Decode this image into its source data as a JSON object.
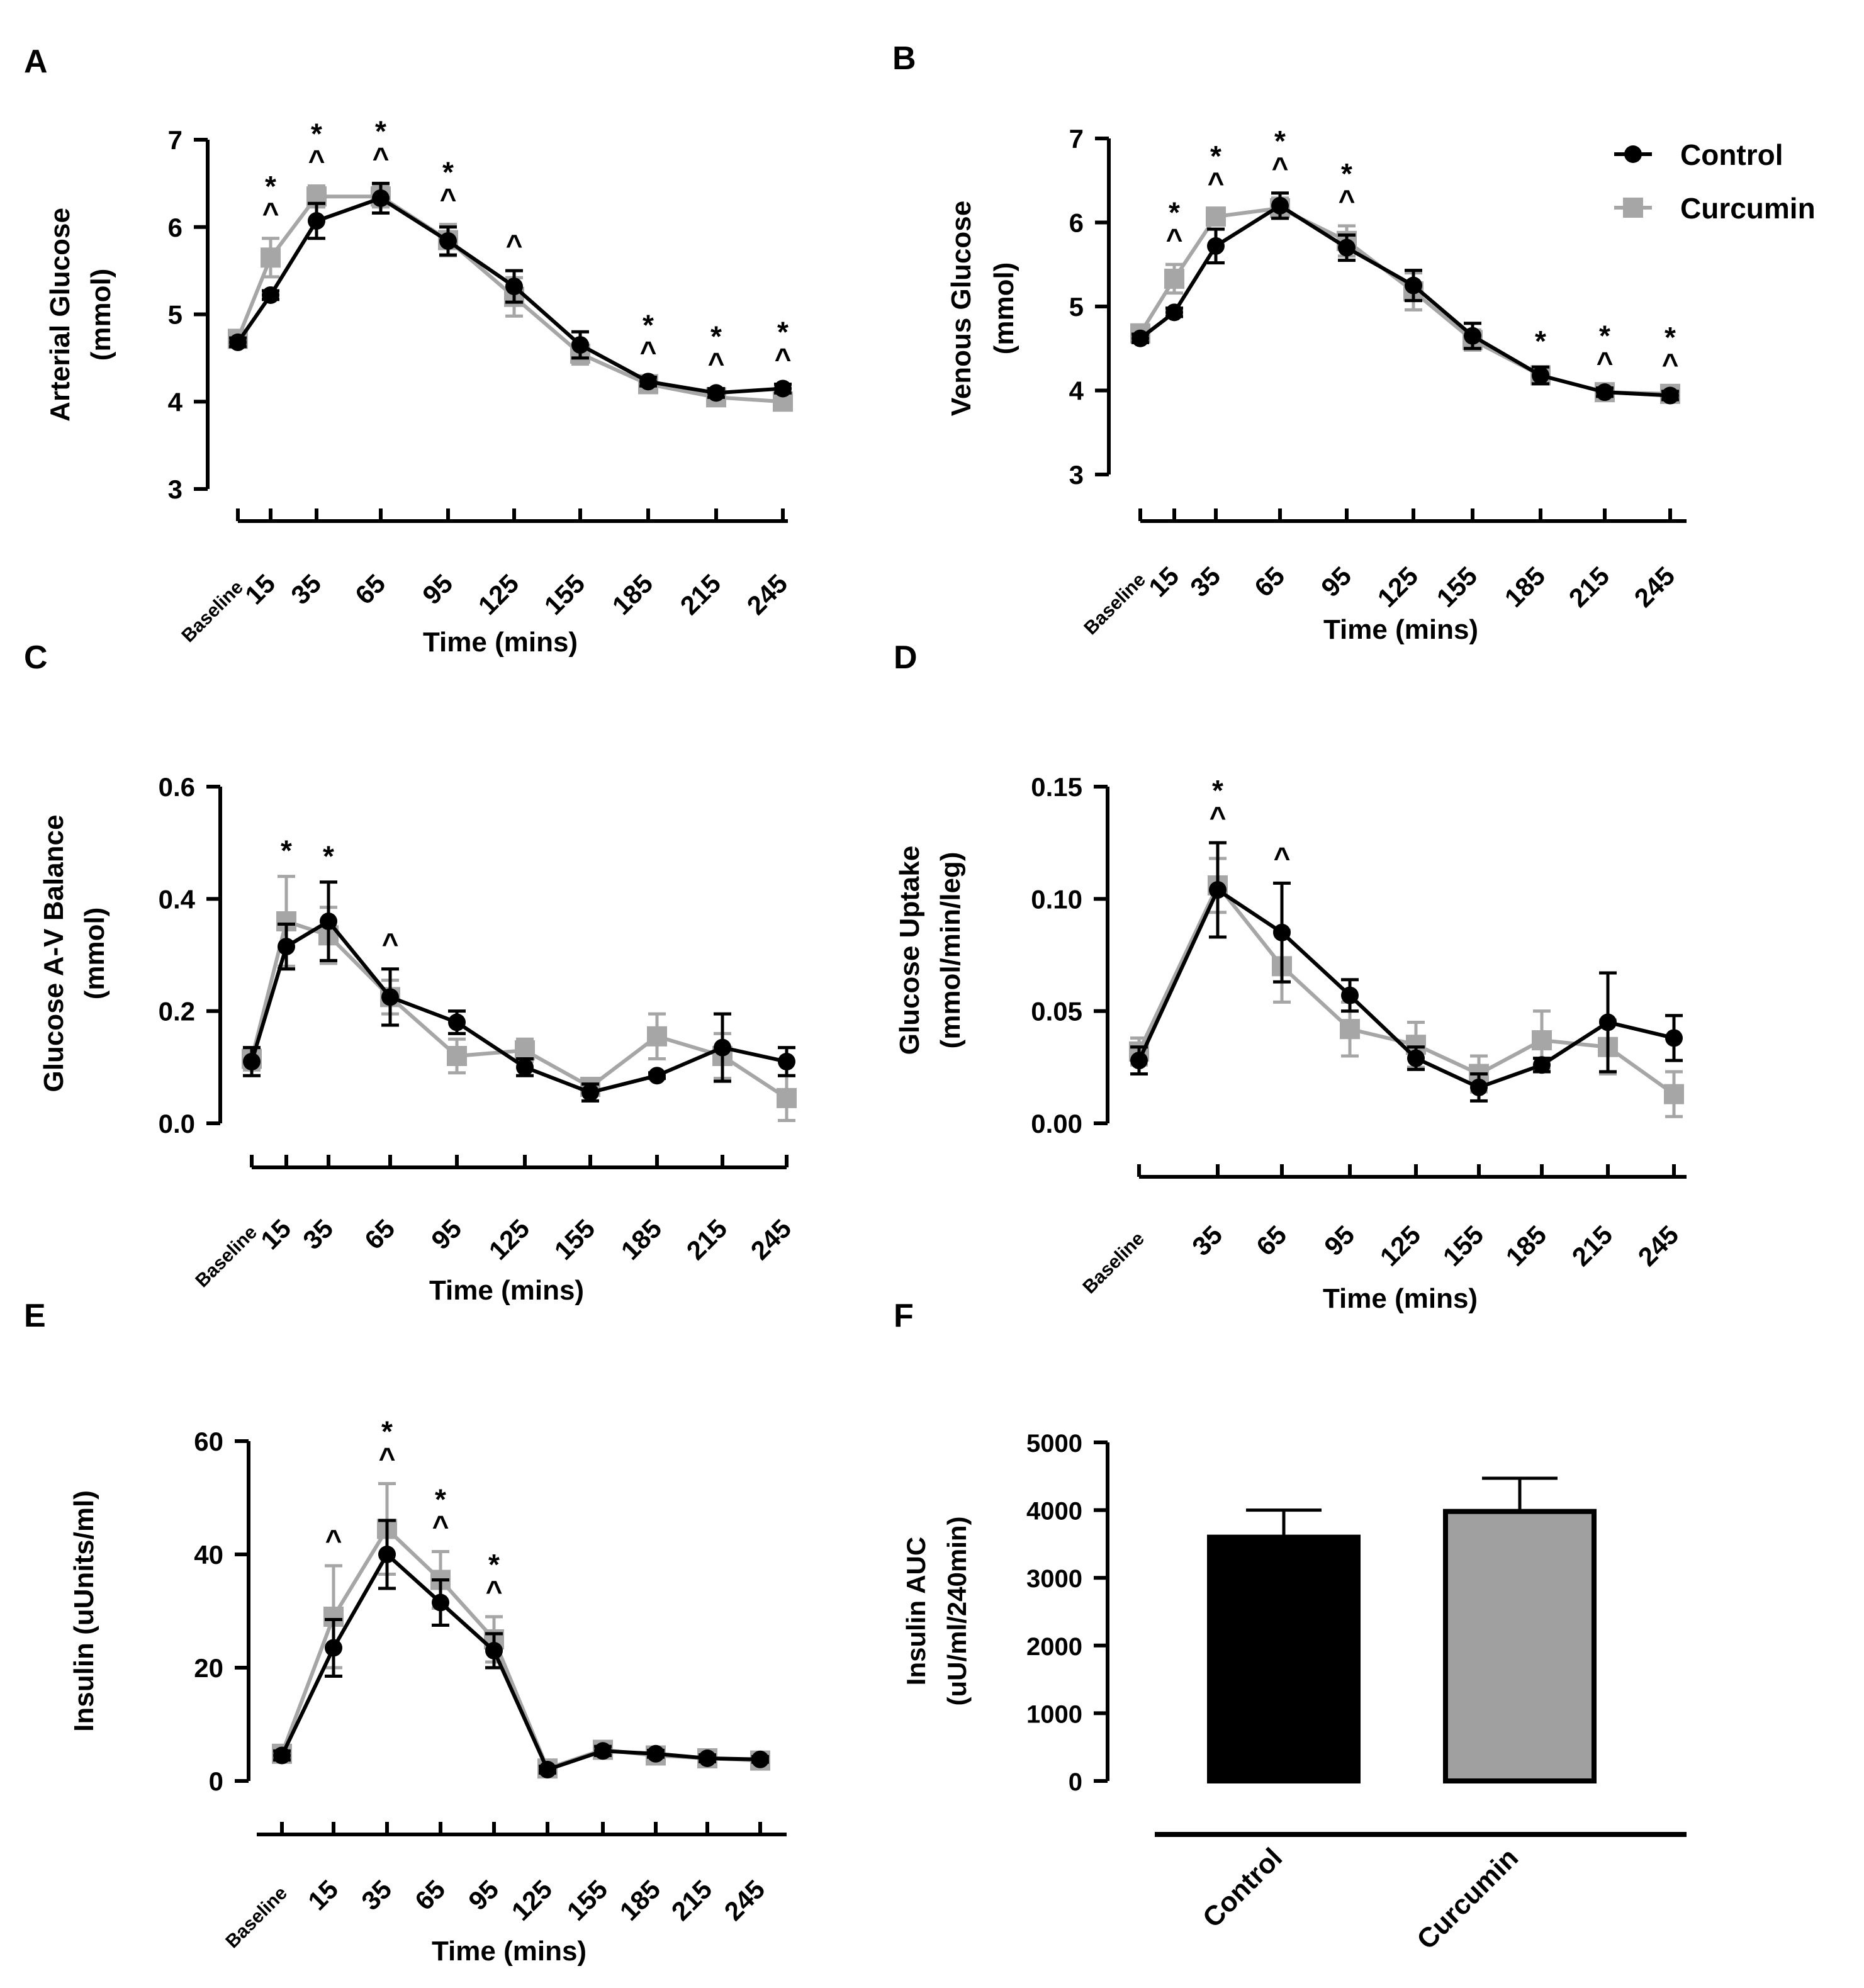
{
  "colors": {
    "control": "#000000",
    "curcumin": "#a6a6a6",
    "curcumin_bar": "#a0a0a0"
  },
  "legend": {
    "control_label": "Control",
    "curcumin_label": "Curcumin"
  },
  "chart_data": [
    {
      "panel": "A",
      "type": "line",
      "xlabel": "Time (mins)",
      "ylabel_lines": [
        "Arterial Glucose",
        "(mmol)"
      ],
      "categories": [
        "Baseline",
        "15",
        "35",
        "65",
        "95",
        "125",
        "155",
        "185",
        "215",
        "245"
      ],
      "x_minutes": [
        0,
        15,
        35,
        65,
        95,
        125,
        155,
        185,
        215,
        245
      ],
      "ylim": [
        3,
        7
      ],
      "yticks": [
        "3",
        "4",
        "5",
        "6",
        "7"
      ],
      "ytick_values": [
        3,
        4,
        5,
        6,
        7
      ],
      "series": [
        {
          "name": "Control",
          "values": [
            4.68,
            5.22,
            6.07,
            6.33,
            5.84,
            5.32,
            4.65,
            4.23,
            4.1,
            4.15
          ],
          "errors": [
            0.05,
            0.05,
            0.2,
            0.17,
            0.16,
            0.18,
            0.15,
            0.05,
            0.05,
            0.05
          ]
        },
        {
          "name": "Curcumin",
          "values": [
            4.72,
            5.65,
            6.35,
            6.35,
            5.85,
            5.2,
            4.55,
            4.2,
            4.05,
            4.0
          ],
          "errors": [
            0.06,
            0.22,
            0.12,
            0.12,
            0.18,
            0.22,
            0.12,
            0.05,
            0.05,
            0.05
          ]
        }
      ],
      "annotations": [
        {
          "x": 15,
          "marks": [
            "*",
            "^"
          ]
        },
        {
          "x": 35,
          "marks": [
            "*",
            "^"
          ]
        },
        {
          "x": 65,
          "marks": [
            "*",
            "^"
          ]
        },
        {
          "x": 95,
          "marks": [
            "*",
            "^"
          ]
        },
        {
          "x": 125,
          "marks": [
            "^"
          ]
        },
        {
          "x": 185,
          "marks": [
            "*",
            "^"
          ]
        },
        {
          "x": 215,
          "marks": [
            "*",
            "^"
          ]
        },
        {
          "x": 245,
          "marks": [
            "*",
            "^"
          ]
        }
      ]
    },
    {
      "panel": "B",
      "type": "line",
      "xlabel": "Time (mins)",
      "ylabel_lines": [
        "Venous Glucose",
        "(mmol)"
      ],
      "categories": [
        "Baseline",
        "15",
        "35",
        "65",
        "95",
        "125",
        "155",
        "185",
        "215",
        "245"
      ],
      "x_minutes": [
        0,
        15,
        35,
        65,
        95,
        125,
        155,
        185,
        215,
        245
      ],
      "ylim": [
        3,
        7
      ],
      "yticks": [
        "3",
        "4",
        "5",
        "6",
        "7"
      ],
      "ytick_values": [
        3,
        4,
        5,
        6,
        7
      ],
      "legend_position": "top-right",
      "series": [
        {
          "name": "Control",
          "values": [
            4.62,
            4.93,
            5.72,
            6.2,
            5.7,
            5.25,
            4.65,
            4.18,
            3.98,
            3.94
          ],
          "errors": [
            0.05,
            0.05,
            0.2,
            0.15,
            0.15,
            0.18,
            0.15,
            0.1,
            0.05,
            0.05
          ]
        },
        {
          "name": "Curcumin",
          "values": [
            4.68,
            5.33,
            6.07,
            6.17,
            5.78,
            5.18,
            4.6,
            4.18,
            3.98,
            3.96
          ],
          "errors": [
            0.06,
            0.17,
            0.1,
            0.12,
            0.18,
            0.22,
            0.12,
            0.08,
            0.05,
            0.05
          ]
        }
      ],
      "annotations": [
        {
          "x": 15,
          "marks": [
            "*",
            "^"
          ]
        },
        {
          "x": 35,
          "marks": [
            "*",
            "^"
          ]
        },
        {
          "x": 65,
          "marks": [
            "*",
            "^"
          ]
        },
        {
          "x": 95,
          "marks": [
            "*",
            "^"
          ]
        },
        {
          "x": 185,
          "marks": [
            "*"
          ]
        },
        {
          "x": 215,
          "marks": [
            "*",
            "^"
          ]
        },
        {
          "x": 245,
          "marks": [
            "*",
            "^"
          ]
        }
      ]
    },
    {
      "panel": "C",
      "type": "line",
      "xlabel": "Time (mins)",
      "ylabel_lines": [
        "Glucose A-V Balance",
        "(mmol)"
      ],
      "categories": [
        "Baseline",
        "15",
        "35",
        "65",
        "95",
        "125",
        "155",
        "185",
        "215",
        "245"
      ],
      "x_minutes": [
        0,
        15,
        35,
        65,
        95,
        125,
        155,
        185,
        215,
        245
      ],
      "ylim": [
        0,
        0.6
      ],
      "yticks": [
        "0.0",
        "0.2",
        "0.4",
        "0.6"
      ],
      "ytick_values": [
        0,
        0.2,
        0.4,
        0.6
      ],
      "series": [
        {
          "name": "Control",
          "values": [
            0.11,
            0.315,
            0.36,
            0.225,
            0.18,
            0.1,
            0.055,
            0.085,
            0.135,
            0.11
          ],
          "errors": [
            0.025,
            0.04,
            0.07,
            0.05,
            0.02,
            0.015,
            0.015,
            0.005,
            0.06,
            0.025
          ]
        },
        {
          "name": "Curcumin",
          "values": [
            0.115,
            0.36,
            0.335,
            0.225,
            0.12,
            0.13,
            0.065,
            0.155,
            0.12,
            0.045
          ],
          "errors": [
            0.02,
            0.08,
            0.05,
            0.03,
            0.03,
            0.02,
            0.01,
            0.04,
            0.04,
            0.04
          ]
        }
      ],
      "annotations": [
        {
          "x": 15,
          "marks": [
            "*"
          ]
        },
        {
          "x": 35,
          "marks": [
            "*"
          ]
        },
        {
          "x": 65,
          "marks": [
            "^"
          ]
        }
      ]
    },
    {
      "panel": "D",
      "type": "line",
      "xlabel": "Time (mins)",
      "ylabel_lines": [
        "Glucose Uptake",
        "(mmol/min/leg)"
      ],
      "categories": [
        "Baseline",
        "35",
        "65",
        "95",
        "125",
        "155",
        "185",
        "215",
        "245"
      ],
      "x_minutes": [
        0,
        35,
        65,
        95,
        125,
        155,
        185,
        215,
        245
      ],
      "ylim": [
        0,
        0.15
      ],
      "yticks": [
        "0.00",
        "0.05",
        "0.10",
        "0.15"
      ],
      "ytick_values": [
        0,
        0.05,
        0.1,
        0.15
      ],
      "series": [
        {
          "name": "Control",
          "values": [
            0.028,
            0.104,
            0.085,
            0.057,
            0.029,
            0.016,
            0.026,
            0.045,
            0.038
          ],
          "errors": [
            0.006,
            0.021,
            0.022,
            0.007,
            0.005,
            0.006,
            0.003,
            0.022,
            0.01
          ]
        },
        {
          "name": "Curcumin",
          "values": [
            0.032,
            0.106,
            0.07,
            0.042,
            0.035,
            0.022,
            0.037,
            0.034,
            0.013
          ],
          "errors": [
            0.006,
            0.012,
            0.016,
            0.012,
            0.01,
            0.008,
            0.013,
            0.012,
            0.01
          ]
        }
      ],
      "annotations": [
        {
          "x": 35,
          "marks": [
            "*",
            "^"
          ]
        },
        {
          "x": 65,
          "marks": [
            "^"
          ]
        }
      ]
    },
    {
      "panel": "E",
      "type": "line",
      "xlabel": "Time (mins)",
      "ylabel_lines": [
        "Insulin (uUnits/ml)"
      ],
      "categories": [
        "Baseline",
        "15",
        "35",
        "65",
        "95",
        "125",
        "155",
        "185",
        "215",
        "245"
      ],
      "x_minutes": [
        0,
        15,
        35,
        65,
        95,
        125,
        155,
        185,
        215,
        245
      ],
      "ylim": [
        0,
        60
      ],
      "yticks": [
        "0",
        "20",
        "40",
        "60"
      ],
      "ytick_values": [
        0,
        20,
        40,
        60
      ],
      "series": [
        {
          "name": "Control",
          "values": [
            4.5,
            23.5,
            40,
            31.5,
            23,
            2,
            5.3,
            4.8,
            4,
            3.8
          ],
          "errors": [
            0.8,
            5,
            6,
            4,
            3,
            0.6,
            0.8,
            0.6,
            0.6,
            0.5
          ]
        },
        {
          "name": "Curcumin",
          "values": [
            4.8,
            29,
            44.5,
            35.5,
            25,
            2.2,
            5.5,
            4.5,
            4,
            3.6
          ],
          "errors": [
            0.8,
            9,
            8,
            5,
            4,
            0.6,
            0.8,
            0.6,
            0.6,
            0.5
          ]
        }
      ],
      "annotations": [
        {
          "x": 15,
          "marks": [
            "^"
          ]
        },
        {
          "x": 35,
          "marks": [
            "*",
            "^"
          ]
        },
        {
          "x": 65,
          "marks": [
            "*",
            "^"
          ]
        },
        {
          "x": 95,
          "marks": [
            "*",
            "^"
          ]
        }
      ]
    },
    {
      "panel": "F",
      "type": "bar",
      "ylabel_lines": [
        "Insulin AUC",
        "(uU/ml/240min)"
      ],
      "categories": [
        "Control",
        "Curcumin"
      ],
      "values": [
        3600,
        3980
      ],
      "errors": [
        400,
        490
      ],
      "ylim": [
        0,
        5000
      ],
      "yticks": [
        "0",
        "1000",
        "2000",
        "3000",
        "4000",
        "5000"
      ],
      "ytick_values": [
        0,
        1000,
        2000,
        3000,
        4000,
        5000
      ]
    }
  ]
}
